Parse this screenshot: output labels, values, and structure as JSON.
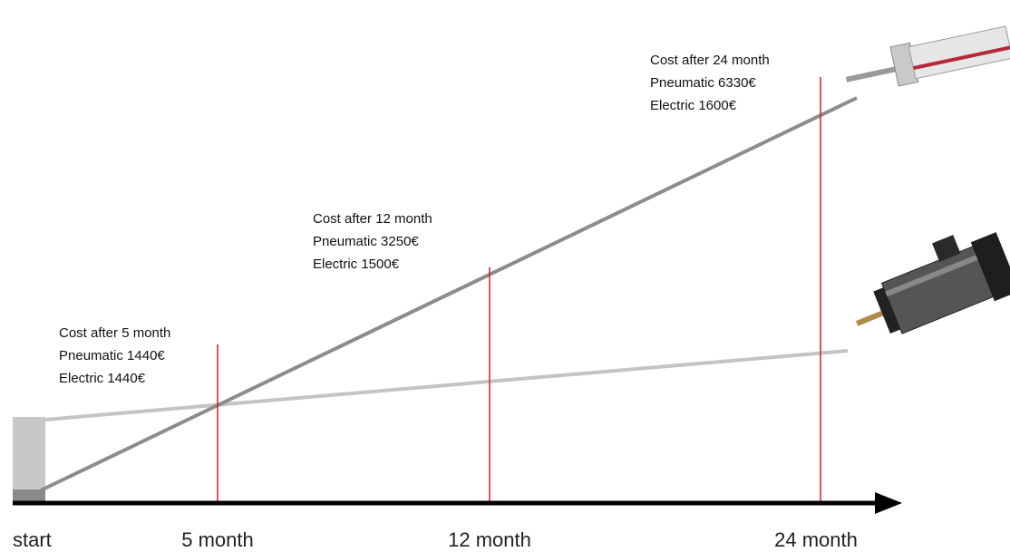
{
  "annotations": [
    {
      "title": "Cost after 5 month",
      "lines": [
        "Pneumatic 1440€",
        "Electric 1440€"
      ]
    },
    {
      "title": "Cost after 12 month",
      "lines": [
        "Pneumatic 3250€",
        "Electric 1500€"
      ]
    },
    {
      "title": "Cost after 24 month",
      "lines": [
        "Pneumatic 6330€",
        "Electric 1600€"
      ]
    }
  ],
  "axis": {
    "labels": [
      "start",
      "5 month",
      "12 month",
      "24 month"
    ]
  }
}
